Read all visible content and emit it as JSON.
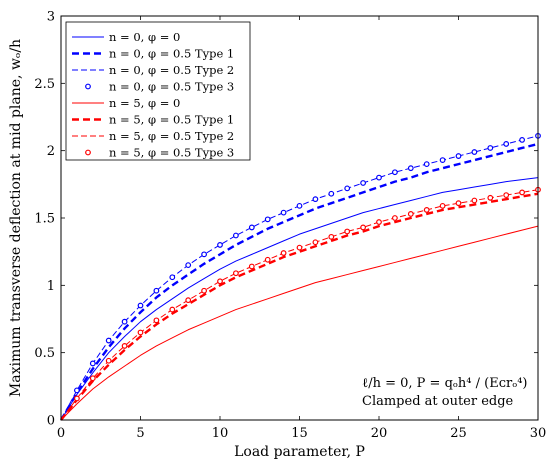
{
  "chart_data": {
    "type": "line",
    "xlabel": "Load parameter, P",
    "ylabel": "Maximum transverse deflection at mid plane, wₒ/h",
    "xlim": [
      0,
      30
    ],
    "ylim": [
      0,
      3
    ],
    "xticks": [
      0,
      5,
      10,
      15,
      20,
      25,
      30
    ],
    "yticks": [
      0,
      0.5,
      1,
      1.5,
      2,
      2.5,
      3
    ],
    "ytick_labels": [
      "0",
      "0.5",
      "1",
      "1.5",
      "2",
      "2.5",
      "3"
    ],
    "grid": false,
    "legend_position": "top-left",
    "annotation": {
      "line1": "ℓ/h = 0, P = qₒh⁴ / (Eᴄrₒ⁴)",
      "line2": "Clamped at outer edge"
    },
    "x": [
      0,
      1,
      2,
      3,
      4,
      5,
      6,
      7,
      8,
      9,
      10,
      11,
      12,
      13,
      14,
      15,
      16,
      17,
      18,
      19,
      20,
      21,
      22,
      23,
      24,
      25,
      26,
      27,
      28,
      29,
      30
    ],
    "series": [
      {
        "name": "n = 0, φ = 0",
        "color": "#0000ff",
        "style": "solid",
        "values": [
          0.0,
          0.19,
          0.35,
          0.5,
          0.62,
          0.73,
          0.82,
          0.9,
          0.98,
          1.05,
          1.12,
          1.18,
          1.23,
          1.28,
          1.33,
          1.38,
          1.42,
          1.46,
          1.5,
          1.54,
          1.57,
          1.6,
          1.63,
          1.66,
          1.69,
          1.71,
          1.73,
          1.75,
          1.77,
          1.785,
          1.8
        ]
      },
      {
        "name": "n = 0, φ = 0.5 Type 1",
        "color": "#0000ff",
        "style": "bold-dashed",
        "values": [
          0.0,
          0.2,
          0.38,
          0.54,
          0.68,
          0.8,
          0.91,
          1.0,
          1.08,
          1.16,
          1.23,
          1.3,
          1.36,
          1.42,
          1.47,
          1.52,
          1.57,
          1.61,
          1.65,
          1.69,
          1.73,
          1.77,
          1.8,
          1.84,
          1.87,
          1.9,
          1.93,
          1.96,
          1.99,
          2.02,
          2.05
        ]
      },
      {
        "name": "n = 0, φ = 0.5 Type 2",
        "color": "#0000ff",
        "style": "dashed",
        "values": [
          0.0,
          0.22,
          0.42,
          0.59,
          0.73,
          0.85,
          0.96,
          1.06,
          1.15,
          1.23,
          1.3,
          1.37,
          1.43,
          1.49,
          1.54,
          1.59,
          1.64,
          1.68,
          1.72,
          1.76,
          1.8,
          1.84,
          1.87,
          1.9,
          1.93,
          1.96,
          1.99,
          2.02,
          2.05,
          2.08,
          2.11
        ]
      },
      {
        "name": "n = 0, φ = 0.5 Type 3",
        "color": "#0000ff",
        "style": "markers",
        "values": [
          0.0,
          0.22,
          0.42,
          0.59,
          0.73,
          0.85,
          0.96,
          1.06,
          1.15,
          1.23,
          1.3,
          1.37,
          1.43,
          1.49,
          1.54,
          1.59,
          1.64,
          1.68,
          1.72,
          1.76,
          1.8,
          1.84,
          1.87,
          1.9,
          1.93,
          1.96,
          1.99,
          2.02,
          2.05,
          2.08,
          2.11
        ]
      },
      {
        "name": "n = 5, φ = 0",
        "color": "#ff0000",
        "style": "solid",
        "values": [
          0.0,
          0.12,
          0.23,
          0.32,
          0.4,
          0.48,
          0.55,
          0.61,
          0.67,
          0.72,
          0.77,
          0.82,
          0.86,
          0.9,
          0.94,
          0.98,
          1.02,
          1.05,
          1.08,
          1.11,
          1.14,
          1.17,
          1.2,
          1.23,
          1.26,
          1.29,
          1.32,
          1.35,
          1.38,
          1.41,
          1.44
        ]
      },
      {
        "name": "n = 5, φ = 0.5 Type 1",
        "color": "#ff0000",
        "style": "bold-dashed",
        "values": [
          0.0,
          0.15,
          0.29,
          0.41,
          0.52,
          0.62,
          0.71,
          0.79,
          0.86,
          0.93,
          1.0,
          1.06,
          1.11,
          1.16,
          1.21,
          1.25,
          1.29,
          1.33,
          1.37,
          1.4,
          1.44,
          1.47,
          1.5,
          1.53,
          1.56,
          1.58,
          1.6,
          1.62,
          1.64,
          1.66,
          1.68
        ]
      },
      {
        "name": "n = 5, φ = 0.5 Type 2",
        "color": "#ff0000",
        "style": "dashed",
        "values": [
          0.0,
          0.16,
          0.31,
          0.44,
          0.55,
          0.65,
          0.74,
          0.82,
          0.89,
          0.96,
          1.03,
          1.09,
          1.14,
          1.19,
          1.24,
          1.28,
          1.32,
          1.36,
          1.4,
          1.43,
          1.47,
          1.5,
          1.53,
          1.56,
          1.59,
          1.61,
          1.63,
          1.65,
          1.67,
          1.69,
          1.71
        ]
      },
      {
        "name": "n = 5, φ = 0.5 Type 3",
        "color": "#ff0000",
        "style": "markers",
        "values": [
          0.0,
          0.16,
          0.31,
          0.44,
          0.55,
          0.65,
          0.74,
          0.82,
          0.89,
          0.96,
          1.03,
          1.09,
          1.14,
          1.19,
          1.24,
          1.28,
          1.32,
          1.36,
          1.4,
          1.43,
          1.47,
          1.5,
          1.53,
          1.56,
          1.59,
          1.61,
          1.63,
          1.65,
          1.67,
          1.69,
          1.71
        ]
      }
    ]
  }
}
